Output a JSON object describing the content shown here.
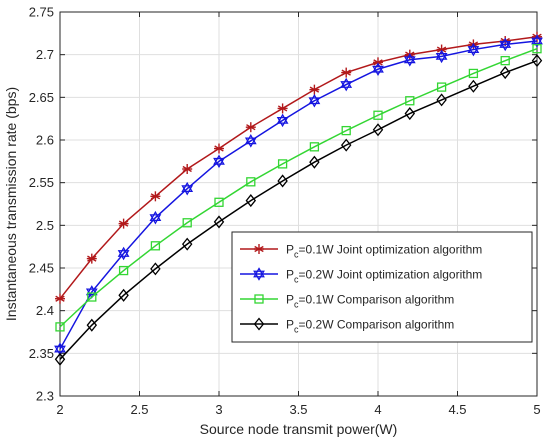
{
  "chart_data": {
    "type": "line",
    "xlabel": "Source node transmit power(W)",
    "ylabel": "Instantaneous transmission rate (bps)",
    "xlim": [
      2,
      5
    ],
    "ylim": [
      2.3,
      2.75
    ],
    "xticks": [
      2,
      2.5,
      3,
      3.5,
      4,
      4.5,
      5
    ],
    "xtick_labels": [
      "2",
      "2.5",
      "3",
      "3.5",
      "4",
      "4.5",
      "5"
    ],
    "yticks": [
      2.3,
      2.35,
      2.4,
      2.45,
      2.5,
      2.55,
      2.6,
      2.65,
      2.7,
      2.75
    ],
    "ytick_labels": [
      "2.3",
      "2.35",
      "2.4",
      "2.45",
      "2.5",
      "2.55",
      "2.6",
      "2.65",
      "2.7",
      "2.75"
    ],
    "grid": true,
    "legend_position": "lower-right",
    "x": [
      2,
      2.2,
      2.4,
      2.6,
      2.8,
      3,
      3.2,
      3.4,
      3.6,
      3.8,
      4,
      4.2,
      4.4,
      4.6,
      4.8,
      5
    ],
    "series": [
      {
        "name": "Pc=0.1W Joint optimization algorithm",
        "legend_main": "P",
        "legend_sub": "c",
        "legend_rest": "=0.1W Joint optimization algorithm",
        "color": "#b2191b",
        "marker": "asterisk",
        "values": [
          2.414,
          2.461,
          2.502,
          2.534,
          2.566,
          2.59,
          2.615,
          2.637,
          2.659,
          2.679,
          2.691,
          2.7,
          2.706,
          2.712,
          2.716,
          2.721
        ]
      },
      {
        "name": "Pc=0.2W Joint optimization algorithm",
        "legend_main": "P",
        "legend_sub": "c",
        "legend_rest": "=0.2W Joint optimization algorithm",
        "color": "#1515e0",
        "marker": "hexagram",
        "values": [
          2.355,
          2.422,
          2.467,
          2.509,
          2.543,
          2.575,
          2.599,
          2.623,
          2.646,
          2.665,
          2.683,
          2.694,
          2.698,
          2.706,
          2.712,
          2.716
        ]
      },
      {
        "name": "Pc=0.1W Comparison algorithm",
        "legend_main": "P",
        "legend_sub": "c",
        "legend_rest": "=0.1W Comparison algorithm",
        "color": "#33d633",
        "marker": "square",
        "values": [
          2.381,
          2.416,
          2.447,
          2.476,
          2.503,
          2.527,
          2.551,
          2.572,
          2.592,
          2.611,
          2.629,
          2.646,
          2.662,
          2.678,
          2.693,
          2.707
        ]
      },
      {
        "name": "Pc=0.2W Comparison algorithm",
        "legend_main": "P",
        "legend_sub": "c",
        "legend_rest": "=0.2W Comparison algorithm",
        "color": "#000000",
        "marker": "diamond",
        "values": [
          2.343,
          2.383,
          2.418,
          2.449,
          2.478,
          2.504,
          2.529,
          2.552,
          2.574,
          2.594,
          2.612,
          2.631,
          2.647,
          2.663,
          2.679,
          2.693
        ]
      }
    ]
  }
}
